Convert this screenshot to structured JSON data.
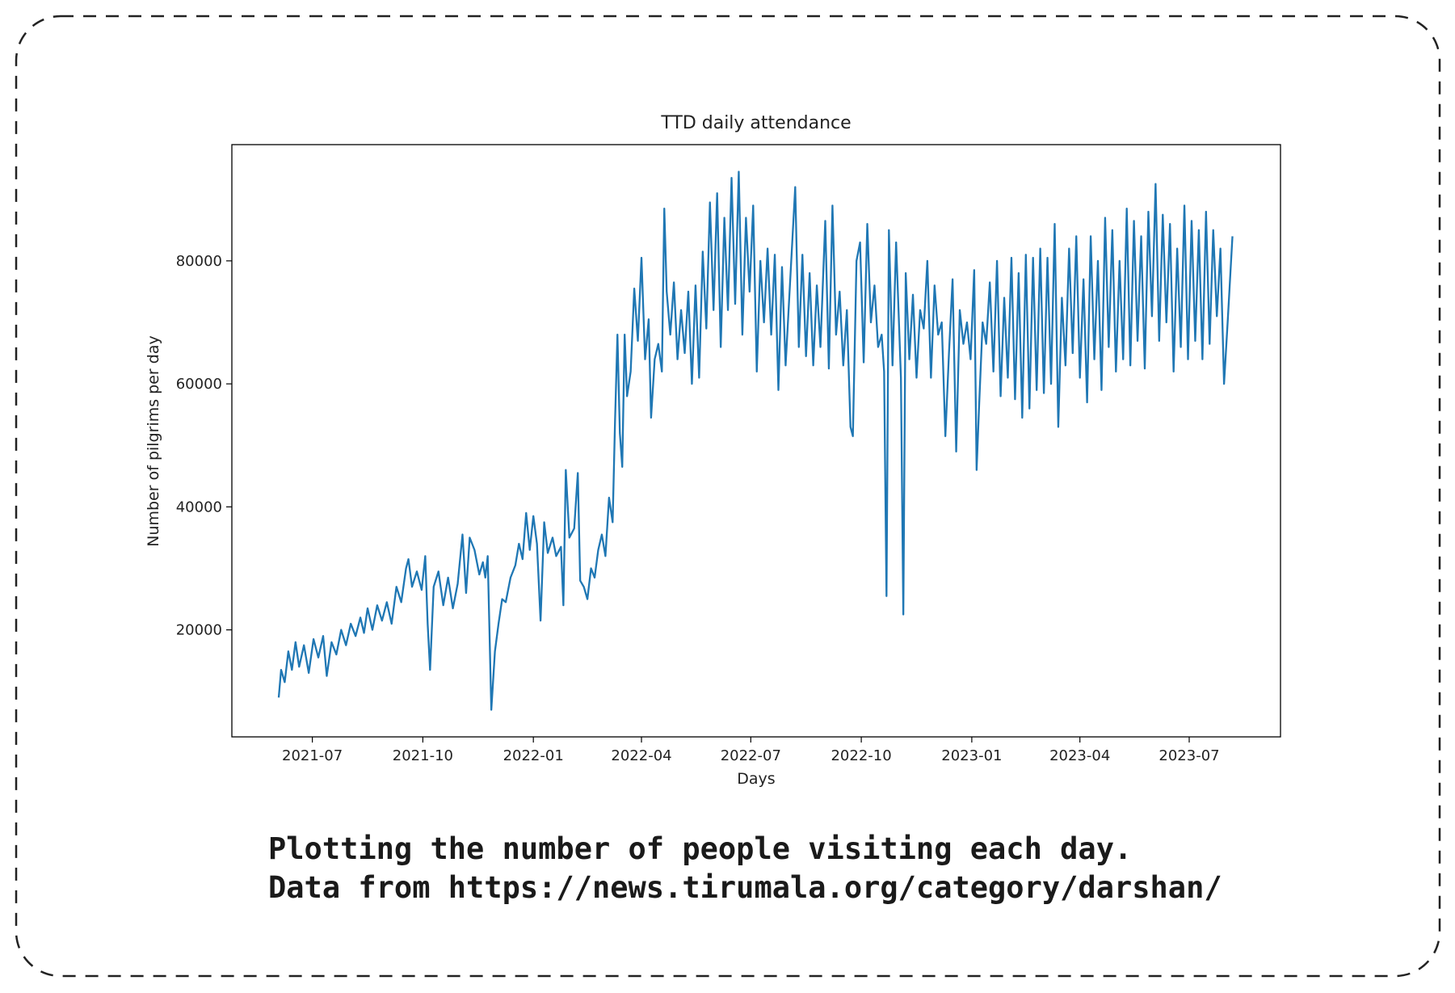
{
  "chart_data": {
    "type": "line",
    "title": "TTD daily attendance",
    "xlabel": "Days",
    "ylabel": "Number of pilgrims per day",
    "xlim": [
      "2021-04-25",
      "2023-09-15"
    ],
    "ylim": [
      2600,
      98900
    ],
    "xticks": [
      {
        "value": "2021-07",
        "label": "2021-07"
      },
      {
        "value": "2021-10",
        "label": "2021-10"
      },
      {
        "value": "2022-01",
        "label": "2022-01"
      },
      {
        "value": "2022-04",
        "label": "2022-04"
      },
      {
        "value": "2022-07",
        "label": "2022-07"
      },
      {
        "value": "2022-10",
        "label": "2022-10"
      },
      {
        "value": "2023-01",
        "label": "2023-01"
      },
      {
        "value": "2023-04",
        "label": "2023-04"
      },
      {
        "value": "2023-07",
        "label": "2023-07"
      }
    ],
    "yticks": [
      20000,
      40000,
      60000,
      80000
    ],
    "color": "#1f77b4",
    "x": [
      "2021-06-03",
      "2021-06-05",
      "2021-06-08",
      "2021-06-11",
      "2021-06-14",
      "2021-06-17",
      "2021-06-20",
      "2021-06-24",
      "2021-06-28",
      "2021-07-02",
      "2021-07-06",
      "2021-07-10",
      "2021-07-13",
      "2021-07-17",
      "2021-07-21",
      "2021-07-25",
      "2021-07-29",
      "2021-08-02",
      "2021-08-06",
      "2021-08-10",
      "2021-08-13",
      "2021-08-16",
      "2021-08-20",
      "2021-08-24",
      "2021-08-28",
      "2021-09-01",
      "2021-09-05",
      "2021-09-09",
      "2021-09-13",
      "2021-09-17",
      "2021-09-19",
      "2021-09-22",
      "2021-09-26",
      "2021-09-30",
      "2021-10-03",
      "2021-10-05",
      "2021-10-07",
      "2021-10-10",
      "2021-10-14",
      "2021-10-18",
      "2021-10-22",
      "2021-10-26",
      "2021-10-30",
      "2021-11-03",
      "2021-11-06",
      "2021-11-09",
      "2021-11-13",
      "2021-11-17",
      "2021-11-20",
      "2021-11-22",
      "2021-11-24",
      "2021-11-27",
      "2021-11-30",
      "2021-12-03",
      "2021-12-06",
      "2021-12-09",
      "2021-12-13",
      "2021-12-17",
      "2021-12-20",
      "2021-12-23",
      "2021-12-26",
      "2021-12-29",
      "2022-01-01",
      "2022-01-04",
      "2022-01-07",
      "2022-01-10",
      "2022-01-13",
      "2022-01-17",
      "2022-01-20",
      "2022-01-24",
      "2022-01-26",
      "2022-01-28",
      "2022-01-31",
      "2022-02-04",
      "2022-02-07",
      "2022-02-09",
      "2022-02-12",
      "2022-02-15",
      "2022-02-18",
      "2022-02-21",
      "2022-02-24",
      "2022-02-27",
      "2022-03-02",
      "2022-03-05",
      "2022-03-08",
      "2022-03-10",
      "2022-03-12",
      "2022-03-14",
      "2022-03-16",
      "2022-03-18",
      "2022-03-20",
      "2022-03-23",
      "2022-03-26",
      "2022-03-29",
      "2022-04-01",
      "2022-04-04",
      "2022-04-07",
      "2022-04-09",
      "2022-04-12",
      "2022-04-15",
      "2022-04-18",
      "2022-04-20",
      "2022-04-22",
      "2022-04-25",
      "2022-04-28",
      "2022-05-01",
      "2022-05-04",
      "2022-05-07",
      "2022-05-10",
      "2022-05-13",
      "2022-05-16",
      "2022-05-19",
      "2022-05-22",
      "2022-05-25",
      "2022-05-28",
      "2022-05-31",
      "2022-06-03",
      "2022-06-06",
      "2022-06-09",
      "2022-06-12",
      "2022-06-15",
      "2022-06-18",
      "2022-06-21",
      "2022-06-24",
      "2022-06-27",
      "2022-06-30",
      "2022-07-03",
      "2022-07-06",
      "2022-07-09",
      "2022-07-12",
      "2022-07-15",
      "2022-07-18",
      "2022-07-21",
      "2022-07-24",
      "2022-07-27",
      "2022-07-30",
      "2022-08-03",
      "2022-08-07",
      "2022-08-10",
      "2022-08-13",
      "2022-08-16",
      "2022-08-19",
      "2022-08-22",
      "2022-08-25",
      "2022-08-28",
      "2022-09-01",
      "2022-09-04",
      "2022-09-07",
      "2022-09-10",
      "2022-09-13",
      "2022-09-16",
      "2022-09-19",
      "2022-09-22",
      "2022-09-24",
      "2022-09-27",
      "2022-09-30",
      "2022-10-03",
      "2022-10-06",
      "2022-10-09",
      "2022-10-12",
      "2022-10-15",
      "2022-10-18",
      "2022-10-20",
      "2022-10-22",
      "2022-10-24",
      "2022-10-27",
      "2022-10-30",
      "2022-11-03",
      "2022-11-05",
      "2022-11-07",
      "2022-11-10",
      "2022-11-13",
      "2022-11-16",
      "2022-11-19",
      "2022-11-22",
      "2022-11-25",
      "2022-11-28",
      "2022-12-01",
      "2022-12-04",
      "2022-12-07",
      "2022-12-10",
      "2022-12-13",
      "2022-12-16",
      "2022-12-19",
      "2022-12-22",
      "2022-12-25",
      "2022-12-28",
      "2022-12-31",
      "2023-01-03",
      "2023-01-05",
      "2023-01-07",
      "2023-01-10",
      "2023-01-13",
      "2023-01-16",
      "2023-01-19",
      "2023-01-22",
      "2023-01-25",
      "2023-01-28",
      "2023-01-31",
      "2023-02-03",
      "2023-02-06",
      "2023-02-09",
      "2023-02-12",
      "2023-02-15",
      "2023-02-18",
      "2023-02-21",
      "2023-02-24",
      "2023-02-27",
      "2023-03-02",
      "2023-03-05",
      "2023-03-08",
      "2023-03-11",
      "2023-03-14",
      "2023-03-17",
      "2023-03-20",
      "2023-03-23",
      "2023-03-26",
      "2023-03-29",
      "2023-04-01",
      "2023-04-04",
      "2023-04-07",
      "2023-04-10",
      "2023-04-13",
      "2023-04-16",
      "2023-04-19",
      "2023-04-22",
      "2023-04-25",
      "2023-04-28",
      "2023-05-01",
      "2023-05-04",
      "2023-05-07",
      "2023-05-10",
      "2023-05-13",
      "2023-05-16",
      "2023-05-19",
      "2023-05-22",
      "2023-05-25",
      "2023-05-28",
      "2023-05-31",
      "2023-06-03",
      "2023-06-06",
      "2023-06-09",
      "2023-06-12",
      "2023-06-15",
      "2023-06-18",
      "2023-06-21",
      "2023-06-24",
      "2023-06-27",
      "2023-06-30",
      "2023-07-03",
      "2023-07-06",
      "2023-07-09",
      "2023-07-12",
      "2023-07-15",
      "2023-07-18",
      "2023-07-21",
      "2023-07-24",
      "2023-07-27",
      "2023-07-30",
      "2023-08-02",
      "2023-08-06"
    ],
    "values": [
      9000,
      13500,
      11500,
      16500,
      13500,
      18000,
      14000,
      17500,
      13000,
      18500,
      15500,
      19000,
      12500,
      18000,
      16000,
      20000,
      17500,
      21000,
      19000,
      22000,
      19500,
      23500,
      20000,
      24000,
      21500,
      24500,
      21000,
      27000,
      24500,
      30000,
      31500,
      27000,
      29500,
      26500,
      32000,
      21000,
      13500,
      27000,
      29500,
      24000,
      28500,
      23500,
      27500,
      35500,
      26000,
      35000,
      33000,
      29000,
      31000,
      28500,
      32000,
      7000,
      16500,
      21000,
      25000,
      24500,
      28500,
      30500,
      34000,
      31500,
      39000,
      33000,
      38500,
      34000,
      21500,
      37500,
      32500,
      35000,
      32000,
      33500,
      24000,
      46000,
      35000,
      36500,
      45500,
      28000,
      27000,
      25000,
      30000,
      28500,
      33000,
      35500,
      32000,
      41500,
      37500,
      54000,
      68000,
      52000,
      46500,
      68000,
      58000,
      62000,
      75500,
      67000,
      80500,
      64000,
      70500,
      54500,
      64000,
      66500,
      62000,
      88500,
      75000,
      68000,
      76500,
      64000,
      72000,
      65000,
      75000,
      60000,
      76000,
      61000,
      81500,
      69000,
      89500,
      72000,
      91000,
      66000,
      87000,
      72000,
      93500,
      73000,
      94500,
      68000,
      87000,
      75000,
      89000,
      62000,
      80000,
      70000,
      82000,
      68000,
      81000,
      59000,
      79000,
      63000,
      77500,
      92000,
      66000,
      81000,
      64500,
      78000,
      63000,
      76000,
      66000,
      86500,
      62500,
      89000,
      68000,
      75000,
      63000,
      72000,
      53000,
      51500,
      80000,
      83000,
      63500,
      86000,
      70000,
      76000,
      66000,
      68000,
      62000,
      25500,
      85000,
      63000,
      83000,
      61000,
      22500,
      78000,
      64000,
      74500,
      61000,
      72000,
      69000,
      80000,
      61000,
      76000,
      68000,
      70000,
      51500,
      65000,
      77000,
      49000,
      72000,
      66500,
      70000,
      64000,
      78500,
      46000,
      56000,
      70000,
      66500,
      76500,
      62000,
      80000,
      58000,
      74000,
      61000,
      80500,
      57500,
      78000,
      54500,
      81000,
      56000,
      80500,
      59000,
      82000,
      58500,
      80500,
      60000,
      86000,
      53000,
      74000,
      63000,
      82000,
      65000,
      84000,
      61000,
      77000,
      57000,
      84000,
      64000,
      80000,
      59000,
      87000,
      66000,
      85000,
      62000,
      80000,
      64000,
      88500,
      63000,
      86500,
      67000,
      84000,
      62500,
      88000,
      71000,
      92500,
      67000,
      87500,
      70000,
      86000,
      62000,
      82000,
      66000,
      89000,
      64000,
      86500,
      67000,
      85000,
      64000,
      88000,
      66500,
      85000,
      71000,
      82000,
      60000,
      70000,
      84000
    ]
  },
  "caption": [
    "Plotting the number of people visiting each day.",
    "Data from https://news.tirumala.org/category/darshan/"
  ]
}
